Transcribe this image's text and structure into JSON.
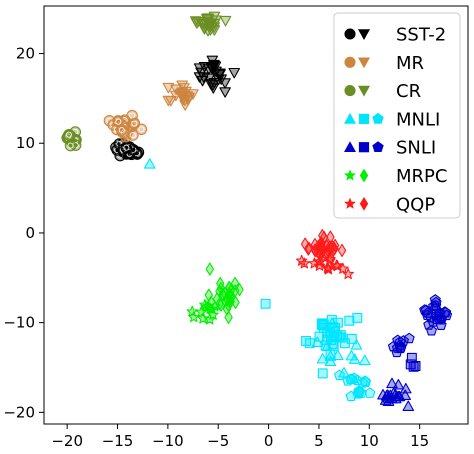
{
  "chart_data": {
    "type": "scatter",
    "title": "",
    "xlabel": "",
    "ylabel": "",
    "xlim": [
      -22.3,
      19.8
    ],
    "ylim": [
      -21.3,
      25.3
    ],
    "xticks": [
      -20,
      -15,
      -10,
      -5,
      0,
      5,
      10,
      15
    ],
    "yticks": [
      -20,
      -10,
      0,
      10,
      20
    ],
    "grid": false,
    "legend_position": "top-right",
    "series": [
      {
        "name": "SST-2",
        "color": "#000000",
        "shapes": [
          "circle",
          "triangle-down"
        ],
        "groups": [
          {
            "shape": "circle",
            "cx": -13.8,
            "cy": 9.1,
            "sx": 1.1,
            "sy": 0.45,
            "n": 30
          },
          {
            "shape": "triangle-down",
            "cx": -5.3,
            "cy": 17.5,
            "sx": 1.3,
            "sy": 1.6,
            "n": 28
          }
        ]
      },
      {
        "name": "MR",
        "color": "#cd853f",
        "shapes": [
          "circle",
          "triangle-down"
        ],
        "groups": [
          {
            "shape": "circle",
            "cx": -14.3,
            "cy": 11.8,
            "sx": 1.1,
            "sy": 0.8,
            "n": 26
          },
          {
            "shape": "triangle-down",
            "cx": -8.6,
            "cy": 15.3,
            "sx": 1.0,
            "sy": 1.0,
            "n": 22
          }
        ]
      },
      {
        "name": "CR",
        "color": "#6b8e23",
        "shapes": [
          "circle",
          "triangle-down"
        ],
        "groups": [
          {
            "shape": "circle",
            "cx": -19.5,
            "cy": 10.5,
            "sx": 0.55,
            "sy": 0.9,
            "n": 16
          },
          {
            "shape": "triangle-down",
            "cx": -5.8,
            "cy": 23.3,
            "sx": 1.0,
            "sy": 0.8,
            "n": 26
          }
        ]
      },
      {
        "name": "MNLI",
        "color": "#00e5ff",
        "shapes": [
          "triangle-up",
          "square",
          "pentagon"
        ],
        "groups": [
          {
            "shape": "square",
            "cx": 6.0,
            "cy": -11.5,
            "sx": 1.8,
            "sy": 1.8,
            "n": 32
          },
          {
            "shape": "pentagon",
            "cx": 8.7,
            "cy": -17.0,
            "sx": 1.0,
            "sy": 1.0,
            "n": 16
          },
          {
            "shape": "triangle-up",
            "cx": 6.5,
            "cy": -13.5,
            "sx": 2.5,
            "sy": 3.0,
            "n": 12
          },
          {
            "shape": "square",
            "cx": -0.3,
            "cy": -7.9,
            "sx": 0.1,
            "sy": 0.1,
            "n": 1
          },
          {
            "shape": "triangle-up",
            "cx": -11.8,
            "cy": 7.7,
            "sx": 0.1,
            "sy": 0.1,
            "n": 1
          }
        ]
      },
      {
        "name": "SNLI",
        "color": "#0000cd",
        "shapes": [
          "triangle-up",
          "square",
          "pentagon"
        ],
        "groups": [
          {
            "shape": "pentagon",
            "cx": 16.5,
            "cy": -9.0,
            "sx": 1.1,
            "sy": 1.1,
            "n": 24
          },
          {
            "shape": "pentagon",
            "cx": 13.0,
            "cy": -12.5,
            "sx": 0.8,
            "sy": 0.8,
            "n": 10
          },
          {
            "shape": "triangle-up",
            "cx": 12.5,
            "cy": -18.0,
            "sx": 0.9,
            "sy": 1.3,
            "n": 18
          },
          {
            "shape": "square",
            "cx": 14.3,
            "cy": -14.5,
            "sx": 0.5,
            "sy": 0.5,
            "n": 4
          }
        ]
      },
      {
        "name": "MRPC",
        "color": "#00ee00",
        "shapes": [
          "star",
          "diamond"
        ],
        "groups": [
          {
            "shape": "diamond",
            "cx": -4.3,
            "cy": -7.0,
            "sx": 1.2,
            "sy": 1.4,
            "n": 30
          },
          {
            "shape": "star",
            "cx": -6.5,
            "cy": -8.8,
            "sx": 1.1,
            "sy": 0.9,
            "n": 12
          }
        ]
      },
      {
        "name": "QQP",
        "color": "#ff1a1a",
        "shapes": [
          "star",
          "diamond"
        ],
        "groups": [
          {
            "shape": "diamond",
            "cx": 5.5,
            "cy": -1.6,
            "sx": 1.6,
            "sy": 1.0,
            "n": 32
          },
          {
            "shape": "star",
            "cx": 5.5,
            "cy": -3.6,
            "sx": 1.6,
            "sy": 0.7,
            "n": 14
          }
        ]
      }
    ]
  }
}
